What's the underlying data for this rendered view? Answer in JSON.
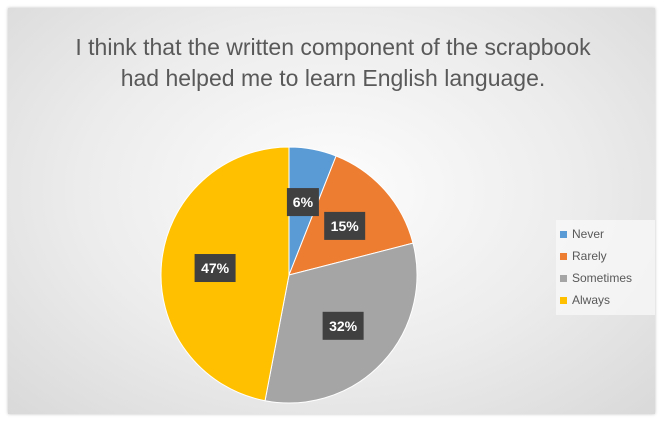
{
  "chart_data": {
    "type": "pie",
    "title": "I think that the written component of the scrapbook had helped me to learn English language.",
    "categories": [
      "Never",
      "Rarely",
      "Sometimes",
      "Always"
    ],
    "values": [
      6,
      15,
      32,
      47
    ],
    "data_labels": [
      "6%",
      "15%",
      "32%",
      "47%"
    ],
    "colors": [
      "#5b9bd5",
      "#ed7d31",
      "#a5a5a5",
      "#ffc000"
    ],
    "legend": "right"
  }
}
